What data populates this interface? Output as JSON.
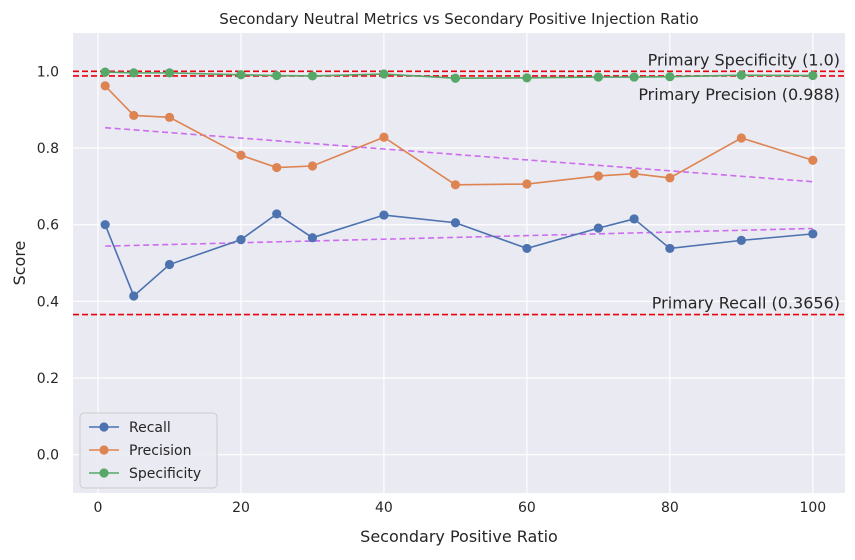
{
  "chart_data": {
    "type": "line",
    "title": "Secondary Neutral Metrics vs Secondary Positive Injection Ratio",
    "xlabel": "Secondary Positive Ratio",
    "ylabel": "Score",
    "xlim": [
      -3.5,
      104.5
    ],
    "ylim": [
      -0.1,
      1.1
    ],
    "xticks": [
      0,
      20,
      40,
      60,
      80,
      100
    ],
    "yticks": [
      0.0,
      0.2,
      0.4,
      0.6,
      0.8,
      1.0
    ],
    "ytick_labels": [
      "0.0",
      "0.2",
      "0.4",
      "0.6",
      "0.8",
      "1.0"
    ],
    "grid": true,
    "legend_position": "lower-left",
    "x": [
      1,
      5,
      10,
      20,
      25,
      30,
      40,
      50,
      60,
      70,
      75,
      80,
      90,
      100
    ],
    "series": [
      {
        "name": "Recall",
        "color": "#4c72b0",
        "values": [
          0.6,
          0.414,
          0.496,
          0.561,
          0.628,
          0.566,
          0.625,
          0.605,
          0.538,
          0.591,
          0.615,
          0.538,
          0.559,
          0.576
        ]
      },
      {
        "name": "Precision",
        "color": "#dd8452",
        "values": [
          0.962,
          0.885,
          0.88,
          0.781,
          0.749,
          0.753,
          0.828,
          0.704,
          0.706,
          0.727,
          0.733,
          0.722,
          0.826,
          0.768
        ]
      },
      {
        "name": "Specificity",
        "color": "#55a868",
        "values": [
          0.998,
          0.996,
          0.996,
          0.991,
          0.989,
          0.988,
          0.993,
          0.982,
          0.983,
          0.985,
          0.985,
          0.986,
          0.99,
          0.989
        ]
      }
    ],
    "trendlines": [
      {
        "color": "#cc6cf0",
        "x": [
          1,
          100
        ],
        "values": [
          0.544,
          0.59
        ]
      },
      {
        "color": "#cc6cf0",
        "x": [
          1,
          100
        ],
        "values": [
          0.853,
          0.712
        ]
      }
    ],
    "reference_lines": [
      {
        "y": 1.0,
        "label": "Primary Specificity (1.0)",
        "label_position": "above",
        "color": "#e8000b"
      },
      {
        "y": 0.988,
        "label": "Primary Precision (0.988)",
        "label_position": "below",
        "color": "#e8000b"
      },
      {
        "y": 0.3656,
        "label": "Primary Recall (0.3656)",
        "label_position": "above",
        "color": "#e8000b"
      }
    ]
  }
}
